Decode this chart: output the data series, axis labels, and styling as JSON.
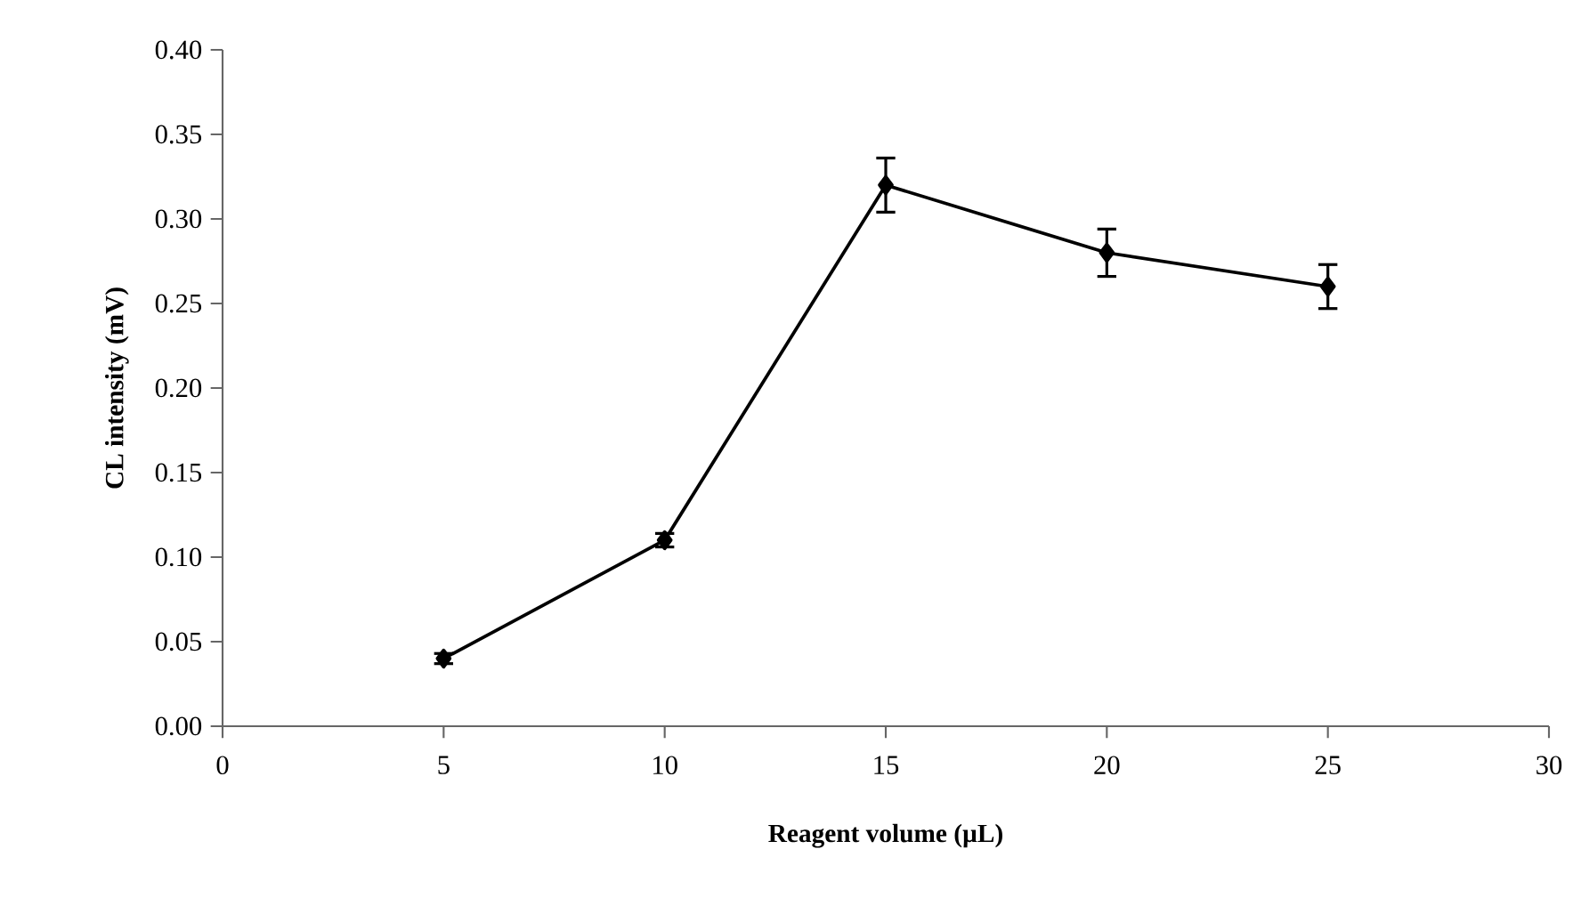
{
  "chart_data": {
    "type": "line",
    "xlabel": "Reagent volume (µL)",
    "ylabel": "CL intensity (mV)",
    "x": [
      5,
      10,
      15,
      20,
      25
    ],
    "series": [
      {
        "color": "#000000",
        "values": [
          0.04,
          0.11,
          0.32,
          0.28,
          0.26
        ],
        "errors": [
          0.003,
          0.004,
          0.016,
          0.014,
          0.013
        ]
      }
    ],
    "xlim": [
      0,
      30
    ],
    "xticks": [
      0,
      5,
      10,
      15,
      20,
      25,
      30
    ],
    "ylim": [
      0,
      0.4
    ],
    "yticks": [
      {
        "value": 0,
        "label": "0.00"
      },
      {
        "value": 0.05,
        "label": "0.05"
      },
      {
        "value": 0.1,
        "label": "0.10"
      },
      {
        "value": 0.15,
        "label": "0.15"
      },
      {
        "value": 0.2,
        "label": "0.20"
      },
      {
        "value": 0.25,
        "label": "0.25"
      },
      {
        "value": 0.3,
        "label": "0.30"
      },
      {
        "value": 0.35,
        "label": "0.35"
      },
      {
        "value": 0.4,
        "label": "0.40"
      }
    ],
    "grid": false,
    "marker": "diamond",
    "line_style": "solid"
  }
}
